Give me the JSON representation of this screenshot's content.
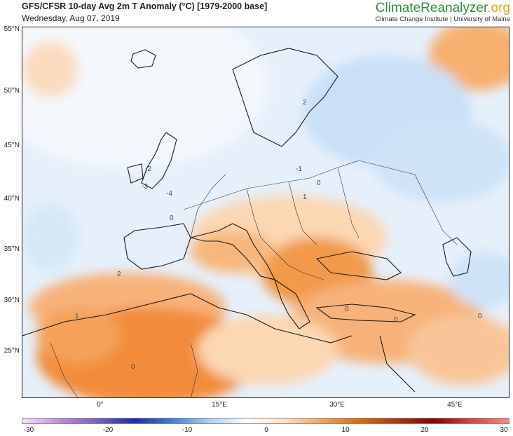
{
  "header": {
    "title": "GFS/CFSR 10-day Avg 2m T Anomaly (°C) [1979-2000 base]",
    "date": "Wednesday, Aug 07, 2019"
  },
  "brand": {
    "name_main": "ClimateReanalyzer",
    "name_suffix": ".org",
    "affiliation": "Climate Change Institute | University of Maine"
  },
  "map": {
    "lat_labels": [
      "55°N",
      "50°N",
      "45°N",
      "40°N",
      "35°N",
      "30°N",
      "25°N"
    ],
    "lon_labels": [
      "0°",
      "15°E",
      "30°E",
      "45°E"
    ],
    "contour_labels": [
      "0",
      "2",
      "1",
      "-1",
      "-2",
      "-3",
      "-4"
    ]
  },
  "colorbar": {
    "ticks": [
      "-30",
      "-20",
      "-10",
      "0",
      "10",
      "20",
      "30"
    ],
    "colors": [
      "#f7e3f5",
      "#c08de0",
      "#7a5ccc",
      "#1f2bb0",
      "#3d7ee0",
      "#a9d3f5",
      "#ffffff",
      "#ffe2c4",
      "#f6a35a",
      "#e06a10",
      "#b8320a",
      "#8b0000",
      "#e04040",
      "#ff8a80"
    ],
    "accent_warm": "#f28a2e",
    "accent_cool": "#b9dbf5"
  }
}
